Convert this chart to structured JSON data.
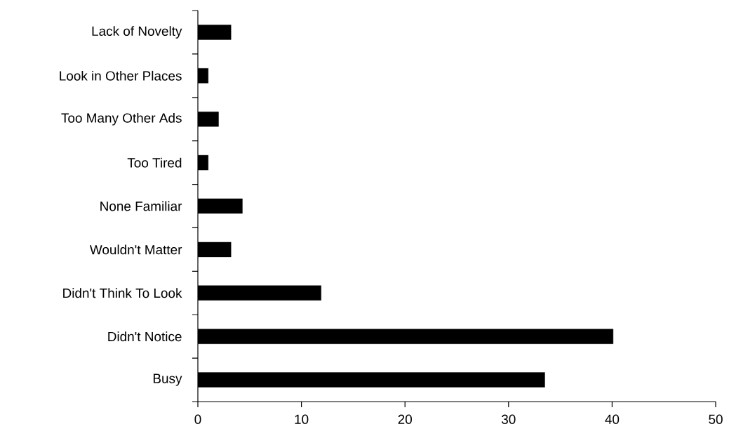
{
  "chart_data": {
    "type": "bar",
    "orientation": "horizontal",
    "categories": [
      "Lack of Novelty",
      "Look in Other Places",
      "Too Many Other Ads",
      "Too Tired",
      "None Familiar",
      "Wouldn't Matter",
      "Didn't Think To Look",
      "Didn't Notice",
      "Busy"
    ],
    "values": [
      3.2,
      1.0,
      2.0,
      1.0,
      4.3,
      3.2,
      11.9,
      40.1,
      33.5
    ],
    "color": "#000000",
    "xlim": [
      0,
      50
    ],
    "xticks": [
      0,
      10,
      20,
      30,
      40,
      50
    ]
  }
}
